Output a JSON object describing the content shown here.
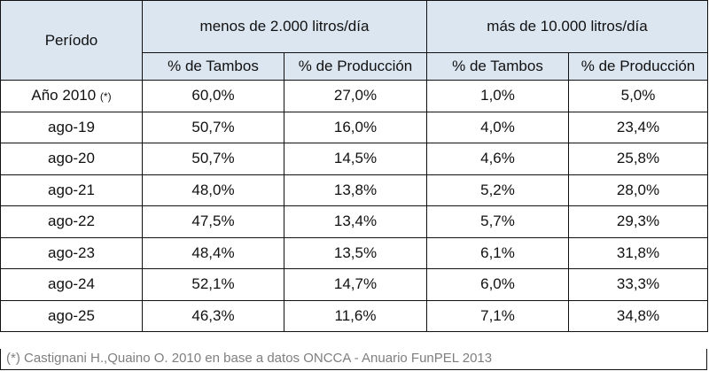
{
  "table": {
    "header_period": "Período",
    "group_small": "menos de 2.000 litros/día",
    "group_large": "más de 10.000 litros/día",
    "sub_headers": [
      "% de Tambos",
      "% de Producción",
      "% de Tambos",
      "% de Producción"
    ],
    "rows": [
      {
        "period": "Año 2010",
        "note": "(*)",
        "values": [
          "60,0%",
          "27,0%",
          "1,0%",
          "5,0%"
        ]
      },
      {
        "period": "ago-19",
        "values": [
          "50,7%",
          "16,0%",
          "4,0%",
          "23,4%"
        ]
      },
      {
        "period": "ago-20",
        "values": [
          "50,7%",
          "14,5%",
          "4,6%",
          "25,8%"
        ]
      },
      {
        "period": "ago-21",
        "values": [
          "48,0%",
          "13,8%",
          "5,2%",
          "28,0%"
        ]
      },
      {
        "period": "ago-22",
        "values": [
          "47,5%",
          "13,4%",
          "5,7%",
          "29,3%"
        ]
      },
      {
        "period": "ago-23",
        "values": [
          "48,4%",
          "13,5%",
          "6,1%",
          "31,8%"
        ]
      },
      {
        "period": "ago-24",
        "values": [
          "52,1%",
          "14,7%",
          "6,0%",
          "33,3%"
        ]
      },
      {
        "period": "ago-25",
        "values": [
          "46,3%",
          "11,6%",
          "7,1%",
          "34,8%"
        ]
      }
    ]
  },
  "footnote": "(*) Castignani H.,Quaino O. 2010 en base a datos ONCCA - Anuario FunPEL 2013",
  "colors": {
    "header_bg": "#dce6f1",
    "footnote_text": "#7f7f7f"
  }
}
